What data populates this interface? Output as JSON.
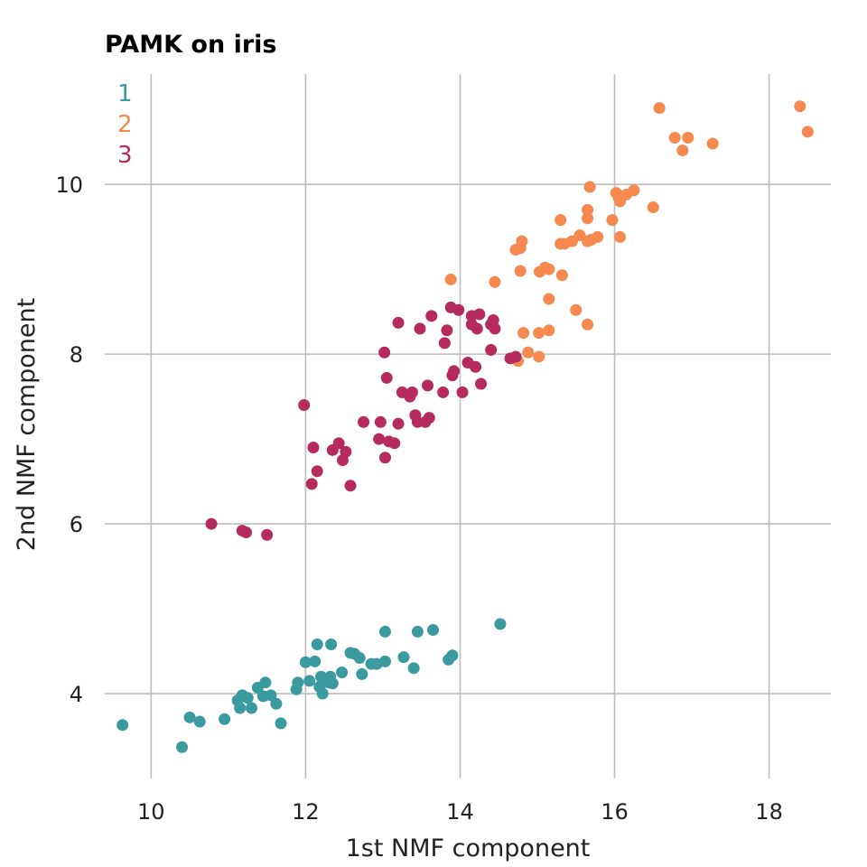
{
  "chart_data": {
    "type": "scatter",
    "title": "PAMK on iris",
    "xlabel": "1st NMF component",
    "ylabel": "2nd NMF component",
    "xlim": [
      9.4,
      18.8
    ],
    "ylim": [
      3.0,
      11.3
    ],
    "xticks": [
      10,
      12,
      14,
      16,
      18
    ],
    "yticks": [
      4,
      6,
      8,
      10
    ],
    "xtick_labels": [
      "10",
      "12",
      "14",
      "16",
      "18"
    ],
    "ytick_labels": [
      "4",
      "6",
      "8",
      "10"
    ],
    "grid": true,
    "legend_position": "top-left",
    "series": [
      {
        "name": "1",
        "color": "#3a9a9e",
        "points": [
          [
            9.63,
            3.63
          ],
          [
            10.4,
            3.37
          ],
          [
            10.5,
            3.72
          ],
          [
            10.63,
            3.67
          ],
          [
            10.95,
            3.7
          ],
          [
            11.12,
            3.92
          ],
          [
            11.15,
            3.83
          ],
          [
            11.18,
            3.98
          ],
          [
            11.25,
            3.95
          ],
          [
            11.3,
            3.83
          ],
          [
            11.38,
            4.07
          ],
          [
            11.45,
            3.97
          ],
          [
            11.48,
            4.13
          ],
          [
            11.55,
            3.98
          ],
          [
            11.62,
            3.88
          ],
          [
            11.68,
            3.65
          ],
          [
            11.88,
            4.05
          ],
          [
            11.9,
            4.13
          ],
          [
            12.0,
            4.37
          ],
          [
            12.05,
            4.15
          ],
          [
            12.12,
            4.38
          ],
          [
            12.15,
            4.58
          ],
          [
            12.18,
            4.08
          ],
          [
            12.2,
            4.2
          ],
          [
            12.22,
            4.0
          ],
          [
            12.25,
            4.15
          ],
          [
            12.3,
            4.13
          ],
          [
            12.32,
            4.2
          ],
          [
            12.33,
            4.58
          ],
          [
            12.35,
            4.12
          ],
          [
            12.47,
            4.25
          ],
          [
            12.58,
            4.48
          ],
          [
            12.63,
            4.47
          ],
          [
            12.7,
            4.42
          ],
          [
            12.73,
            4.23
          ],
          [
            12.85,
            4.35
          ],
          [
            12.92,
            4.35
          ],
          [
            13.03,
            4.38
          ],
          [
            13.03,
            4.73
          ],
          [
            13.27,
            4.43
          ],
          [
            13.4,
            4.3
          ],
          [
            13.45,
            4.73
          ],
          [
            13.65,
            4.75
          ],
          [
            13.85,
            4.4
          ],
          [
            13.9,
            4.45
          ],
          [
            14.52,
            4.82
          ]
        ]
      },
      {
        "name": "2",
        "color": "#f5894f",
        "points": [
          [
            13.88,
            8.88
          ],
          [
            14.45,
            8.85
          ],
          [
            14.7,
            7.95
          ],
          [
            14.72,
            9.23
          ],
          [
            14.75,
            7.92
          ],
          [
            14.78,
            9.25
          ],
          [
            14.78,
            8.98
          ],
          [
            14.8,
            9.33
          ],
          [
            14.82,
            8.25
          ],
          [
            14.88,
            8.02
          ],
          [
            15.02,
            8.25
          ],
          [
            15.02,
            7.97
          ],
          [
            15.03,
            8.97
          ],
          [
            15.1,
            9.02
          ],
          [
            15.15,
            9.0
          ],
          [
            15.15,
            8.65
          ],
          [
            15.15,
            8.28
          ],
          [
            15.3,
            9.58
          ],
          [
            15.3,
            9.3
          ],
          [
            15.32,
            8.93
          ],
          [
            15.35,
            9.3
          ],
          [
            15.45,
            9.33
          ],
          [
            15.5,
            8.52
          ],
          [
            15.55,
            9.4
          ],
          [
            15.65,
            9.7
          ],
          [
            15.65,
            9.6
          ],
          [
            15.65,
            9.33
          ],
          [
            15.65,
            8.35
          ],
          [
            15.68,
            9.97
          ],
          [
            15.7,
            9.35
          ],
          [
            15.78,
            9.38
          ],
          [
            15.97,
            9.58
          ],
          [
            16.02,
            9.9
          ],
          [
            16.05,
            9.85
          ],
          [
            16.07,
            9.8
          ],
          [
            16.07,
            9.38
          ],
          [
            16.15,
            9.88
          ],
          [
            16.25,
            9.93
          ],
          [
            16.5,
            9.73
          ],
          [
            16.58,
            10.9
          ],
          [
            16.78,
            10.55
          ],
          [
            16.88,
            10.4
          ],
          [
            16.95,
            10.55
          ],
          [
            17.27,
            10.48
          ],
          [
            18.4,
            10.92
          ],
          [
            18.5,
            10.62
          ]
        ]
      },
      {
        "name": "3",
        "color": "#b52b5e",
        "points": [
          [
            10.78,
            6.0
          ],
          [
            11.18,
            5.92
          ],
          [
            11.23,
            5.9
          ],
          [
            11.5,
            5.87
          ],
          [
            11.98,
            7.4
          ],
          [
            12.08,
            6.47
          ],
          [
            12.1,
            6.9
          ],
          [
            12.15,
            6.62
          ],
          [
            12.35,
            6.87
          ],
          [
            12.43,
            6.95
          ],
          [
            12.48,
            6.75
          ],
          [
            12.52,
            6.85
          ],
          [
            12.58,
            6.45
          ],
          [
            12.75,
            7.2
          ],
          [
            12.95,
            7.0
          ],
          [
            12.97,
            7.2
          ],
          [
            13.02,
            8.02
          ],
          [
            13.03,
            6.78
          ],
          [
            13.05,
            7.72
          ],
          [
            13.08,
            6.97
          ],
          [
            13.15,
            6.95
          ],
          [
            13.2,
            7.18
          ],
          [
            13.2,
            8.37
          ],
          [
            13.25,
            7.55
          ],
          [
            13.35,
            7.5
          ],
          [
            13.38,
            7.55
          ],
          [
            13.42,
            7.28
          ],
          [
            13.45,
            7.2
          ],
          [
            13.48,
            8.3
          ],
          [
            13.55,
            7.2
          ],
          [
            13.58,
            7.63
          ],
          [
            13.6,
            7.25
          ],
          [
            13.63,
            8.45
          ],
          [
            13.78,
            7.55
          ],
          [
            13.8,
            8.13
          ],
          [
            13.83,
            8.28
          ],
          [
            13.88,
            8.55
          ],
          [
            13.9,
            7.75
          ],
          [
            13.92,
            7.8
          ],
          [
            13.98,
            8.52
          ],
          [
            14.03,
            7.55
          ],
          [
            14.1,
            7.9
          ],
          [
            14.15,
            8.45
          ],
          [
            14.15,
            8.35
          ],
          [
            14.2,
            7.85
          ],
          [
            14.22,
            8.3
          ],
          [
            14.25,
            8.47
          ],
          [
            14.27,
            7.65
          ],
          [
            14.4,
            8.05
          ],
          [
            14.4,
            8.35
          ],
          [
            14.43,
            8.4
          ],
          [
            14.45,
            8.3
          ],
          [
            14.65,
            7.95
          ],
          [
            14.72,
            7.97
          ]
        ]
      }
    ]
  }
}
